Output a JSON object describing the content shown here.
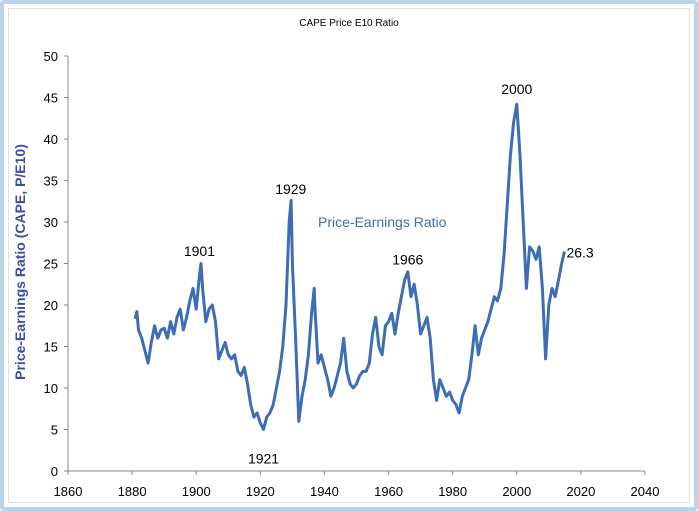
{
  "chart_data": {
    "type": "line",
    "title": "CAPE Price E10 Ratio",
    "xlabel": "",
    "ylabel": "Price-Earnings Ratio (CAPE, P/E10)",
    "xlim": [
      1860,
      2040
    ],
    "ylim": [
      0,
      50
    ],
    "xticks": [
      1860,
      1880,
      1900,
      1920,
      1940,
      1960,
      1980,
      2000,
      2020,
      2040
    ],
    "yticks": [
      0,
      5,
      10,
      15,
      20,
      25,
      30,
      35,
      40,
      45,
      50
    ],
    "grid": false,
    "legend": "none",
    "line_color": "#3d6db5",
    "series": [
      {
        "name": "Price-Earnings Ratio",
        "points": [
          [
            1881,
            18.5
          ],
          [
            1881.5,
            19.2
          ],
          [
            1882,
            17.0
          ],
          [
            1883,
            16.0
          ],
          [
            1884,
            14.5
          ],
          [
            1885,
            13.0
          ],
          [
            1886,
            15.5
          ],
          [
            1887,
            17.5
          ],
          [
            1888,
            16.0
          ],
          [
            1889,
            17.0
          ],
          [
            1890,
            17.2
          ],
          [
            1891,
            16.0
          ],
          [
            1892,
            18.0
          ],
          [
            1893,
            16.5
          ],
          [
            1894,
            18.5
          ],
          [
            1895,
            19.5
          ],
          [
            1896,
            17.0
          ],
          [
            1897,
            18.5
          ],
          [
            1898,
            20.5
          ],
          [
            1899,
            22.0
          ],
          [
            1900,
            19.5
          ],
          [
            1901,
            23.5
          ],
          [
            1901.5,
            25.0
          ],
          [
            1902,
            22.0
          ],
          [
            1903,
            18.0
          ],
          [
            1904,
            19.5
          ],
          [
            1905,
            20.0
          ],
          [
            1906,
            18.0
          ],
          [
            1907,
            13.5
          ],
          [
            1908,
            14.5
          ],
          [
            1909,
            15.5
          ],
          [
            1910,
            14.0
          ],
          [
            1911,
            13.5
          ],
          [
            1912,
            14.0
          ],
          [
            1913,
            12.0
          ],
          [
            1914,
            11.5
          ],
          [
            1915,
            12.5
          ],
          [
            1916,
            10.5
          ],
          [
            1917,
            8.0
          ],
          [
            1918,
            6.5
          ],
          [
            1919,
            7.0
          ],
          [
            1920,
            5.8
          ],
          [
            1921,
            5.0
          ],
          [
            1922,
            6.5
          ],
          [
            1923,
            7.0
          ],
          [
            1924,
            8.0
          ],
          [
            1925,
            10.0
          ],
          [
            1926,
            12.0
          ],
          [
            1927,
            15.0
          ],
          [
            1928,
            20.0
          ],
          [
            1929,
            30.0
          ],
          [
            1929.6,
            32.6
          ],
          [
            1930,
            25.0
          ],
          [
            1931,
            16.0
          ],
          [
            1932,
            6.0
          ],
          [
            1933,
            9.0
          ],
          [
            1934,
            11.0
          ],
          [
            1935,
            14.0
          ],
          [
            1936,
            19.0
          ],
          [
            1936.8,
            22.0
          ],
          [
            1937,
            20.0
          ],
          [
            1938,
            13.0
          ],
          [
            1939,
            14.0
          ],
          [
            1940,
            12.5
          ],
          [
            1941,
            11.0
          ],
          [
            1942,
            9.0
          ],
          [
            1943,
            10.0
          ],
          [
            1944,
            11.5
          ],
          [
            1945,
            13.0
          ],
          [
            1946,
            16.0
          ],
          [
            1947,
            12.0
          ],
          [
            1948,
            10.5
          ],
          [
            1949,
            10.0
          ],
          [
            1950,
            10.5
          ],
          [
            1951,
            11.5
          ],
          [
            1952,
            12.0
          ],
          [
            1953,
            12.0
          ],
          [
            1954,
            13.0
          ],
          [
            1955,
            16.5
          ],
          [
            1956,
            18.5
          ],
          [
            1957,
            15.0
          ],
          [
            1958,
            14.0
          ],
          [
            1959,
            17.5
          ],
          [
            1960,
            18.0
          ],
          [
            1961,
            19.0
          ],
          [
            1962,
            16.5
          ],
          [
            1963,
            19.0
          ],
          [
            1964,
            21.0
          ],
          [
            1965,
            23.0
          ],
          [
            1966,
            24.0
          ],
          [
            1967,
            21.0
          ],
          [
            1968,
            22.5
          ],
          [
            1969,
            20.0
          ],
          [
            1970,
            16.5
          ],
          [
            1971,
            17.5
          ],
          [
            1972,
            18.5
          ],
          [
            1973,
            16.0
          ],
          [
            1974,
            11.0
          ],
          [
            1975,
            8.5
          ],
          [
            1976,
            11.0
          ],
          [
            1977,
            10.0
          ],
          [
            1978,
            9.0
          ],
          [
            1979,
            9.5
          ],
          [
            1980,
            8.5
          ],
          [
            1981,
            8.0
          ],
          [
            1982,
            7.0
          ],
          [
            1983,
            9.0
          ],
          [
            1984,
            10.0
          ],
          [
            1985,
            11.0
          ],
          [
            1986,
            14.0
          ],
          [
            1987,
            17.5
          ],
          [
            1988,
            14.0
          ],
          [
            1989,
            16.0
          ],
          [
            1990,
            17.0
          ],
          [
            1991,
            18.0
          ],
          [
            1992,
            19.5
          ],
          [
            1993,
            21.0
          ],
          [
            1994,
            20.5
          ],
          [
            1995,
            22.0
          ],
          [
            1996,
            26.0
          ],
          [
            1997,
            32.0
          ],
          [
            1998,
            38.0
          ],
          [
            1999,
            42.0
          ],
          [
            2000,
            44.2
          ],
          [
            2001,
            38.0
          ],
          [
            2002,
            30.0
          ],
          [
            2003,
            22.0
          ],
          [
            2004,
            27.0
          ],
          [
            2005,
            26.5
          ],
          [
            2006,
            25.5
          ],
          [
            2007,
            27.0
          ],
          [
            2008,
            22.0
          ],
          [
            2009,
            13.5
          ],
          [
            2010,
            20.0
          ],
          [
            2011,
            22.0
          ],
          [
            2012,
            21.0
          ],
          [
            2013,
            23.0
          ],
          [
            2014,
            25.0
          ],
          [
            2014.8,
            26.3
          ]
        ]
      }
    ],
    "annotations": [
      {
        "text": "1901",
        "x": 1901,
        "y": 26.5
      },
      {
        "text": "1921",
        "x": 1921,
        "y": 1.5
      },
      {
        "text": "1929",
        "x": 1929.5,
        "y": 34.0
      },
      {
        "text": "1966",
        "x": 1966,
        "y": 25.5
      },
      {
        "text": "2000",
        "x": 2000,
        "y": 46.0
      },
      {
        "text": "26.3",
        "x": 2015.5,
        "y": 26.3
      }
    ],
    "series_label": {
      "text": "Price-Earnings Ratio",
      "x": 1938,
      "y": 30
    }
  }
}
